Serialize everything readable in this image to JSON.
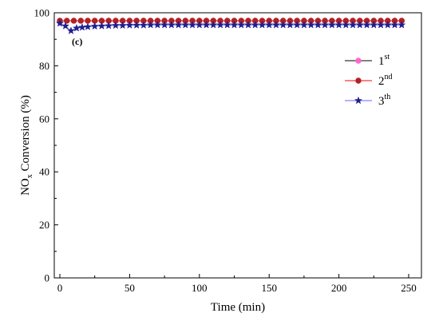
{
  "chart_data": {
    "type": "line",
    "panel_label": "(c)",
    "xlabel": "Time (min)",
    "ylabel": {
      "base": "NO",
      "sub": "x",
      "rest": " Conversion (%)"
    },
    "xlim": [
      0,
      250
    ],
    "ylim": [
      0,
      100
    ],
    "xticks": [
      0,
      50,
      100,
      150,
      200,
      250
    ],
    "yticks": [
      0,
      20,
      40,
      60,
      80,
      100
    ],
    "grid": false,
    "legend_position": "top-right",
    "series": [
      {
        "name": {
          "base": "1",
          "sup": "st"
        },
        "color": "#ff66cc",
        "marker": "circle",
        "line_color": "#000000",
        "x": [
          0,
          5,
          10,
          15,
          20,
          25,
          30,
          35,
          40,
          45,
          50,
          55,
          60,
          65,
          70,
          75,
          80,
          85,
          90,
          95,
          100,
          105,
          110,
          115,
          120,
          125,
          130,
          135,
          140,
          145,
          150,
          155,
          160,
          165,
          170,
          175,
          180,
          185,
          190,
          195,
          200,
          205,
          210,
          215,
          220,
          225,
          230,
          235,
          240,
          245
        ],
        "y": [
          97,
          97,
          97,
          97,
          97,
          97,
          97,
          97,
          97,
          97,
          97,
          97,
          97,
          97,
          97,
          97,
          97,
          97,
          97,
          97,
          97,
          97,
          97,
          97,
          97,
          97,
          97,
          97,
          97,
          97,
          97,
          97,
          97,
          97,
          97,
          97,
          97,
          97,
          97,
          97,
          97,
          97,
          97,
          97,
          97,
          97,
          97,
          97,
          97,
          97
        ]
      },
      {
        "name": {
          "base": "2",
          "sup": "nd"
        },
        "color": "#b22222",
        "marker": "circle",
        "line_color": "#ff0000",
        "x": [
          0,
          5,
          10,
          15,
          20,
          25,
          30,
          35,
          40,
          45,
          50,
          55,
          60,
          65,
          70,
          75,
          80,
          85,
          90,
          95,
          100,
          105,
          110,
          115,
          120,
          125,
          130,
          135,
          140,
          145,
          150,
          155,
          160,
          165,
          170,
          175,
          180,
          185,
          190,
          195,
          200,
          205,
          210,
          215,
          220,
          225,
          230,
          235,
          240,
          245
        ],
        "y": [
          97,
          97,
          97,
          97,
          97,
          97,
          97,
          97,
          97,
          97,
          97,
          97,
          97,
          97,
          97,
          97,
          97,
          97,
          97,
          97,
          97,
          97,
          97,
          97,
          97,
          97,
          97,
          97,
          97,
          97,
          97,
          97,
          97,
          97,
          97,
          97,
          97,
          97,
          97,
          97,
          97,
          97,
          97,
          97,
          97,
          97,
          97,
          97,
          97,
          97
        ]
      },
      {
        "name": {
          "base": "3",
          "sup": "th"
        },
        "color": "#1f1f8f",
        "marker": "star",
        "line_color": "#6666ff",
        "x": [
          0,
          4,
          8,
          12,
          16,
          20,
          25,
          30,
          35,
          40,
          45,
          50,
          55,
          60,
          65,
          70,
          75,
          80,
          85,
          90,
          95,
          100,
          105,
          110,
          115,
          120,
          125,
          130,
          135,
          140,
          145,
          150,
          155,
          160,
          165,
          170,
          175,
          180,
          185,
          190,
          195,
          200,
          205,
          210,
          215,
          220,
          225,
          230,
          235,
          240,
          245
        ],
        "y": [
          96,
          95,
          93.2,
          94.2,
          94.5,
          94.7,
          94.9,
          95,
          95.1,
          95.2,
          95.2,
          95.3,
          95.3,
          95.3,
          95.4,
          95.4,
          95.4,
          95.4,
          95.4,
          95.4,
          95.4,
          95.4,
          95.4,
          95.4,
          95.4,
          95.4,
          95.4,
          95.4,
          95.4,
          95.4,
          95.4,
          95.4,
          95.4,
          95.4,
          95.4,
          95.4,
          95.4,
          95.4,
          95.4,
          95.4,
          95.4,
          95.4,
          95.4,
          95.4,
          95.4,
          95.4,
          95.4,
          95.4,
          95.4,
          95.4,
          95.4
        ]
      }
    ]
  }
}
